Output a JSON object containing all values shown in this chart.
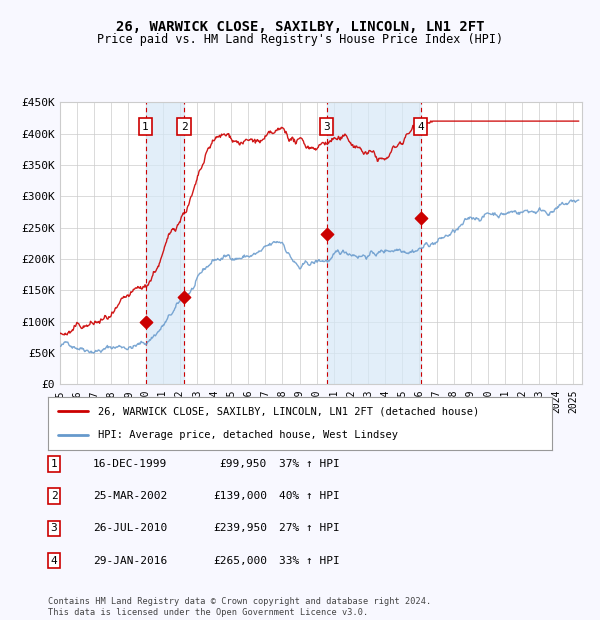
{
  "title": "26, WARWICK CLOSE, SAXILBY, LINCOLN, LN1 2FT",
  "subtitle": "Price paid vs. HM Land Registry's House Price Index (HPI)",
  "legend_line1": "26, WARWICK CLOSE, SAXILBY, LINCOLN, LN1 2FT (detached house)",
  "legend_line2": "HPI: Average price, detached house, West Lindsey",
  "footer1": "Contains HM Land Registry data © Crown copyright and database right 2024.",
  "footer2": "This data is licensed under the Open Government Licence v3.0.",
  "transactions": [
    {
      "num": 1,
      "date": "16-DEC-1999",
      "date_val": 2000.0,
      "price": 99950,
      "pct": "37% ↑ HPI"
    },
    {
      "num": 2,
      "date": "25-MAR-2002",
      "date_val": 2002.25,
      "price": 139000,
      "pct": "40% ↑ HPI"
    },
    {
      "num": 3,
      "date": "26-JUL-2010",
      "date_val": 2010.58,
      "price": 239950,
      "pct": "27% ↑ HPI"
    },
    {
      "num": 4,
      "date": "29-JAN-2016",
      "date_val": 2016.08,
      "price": 265000,
      "pct": "33% ↑ HPI"
    }
  ],
  "xmin": 1995.0,
  "xmax": 2025.5,
  "ymin": 0,
  "ymax": 450000,
  "yticks": [
    0,
    50000,
    100000,
    150000,
    200000,
    250000,
    300000,
    350000,
    400000,
    450000
  ],
  "ytick_labels": [
    "£0",
    "£50K",
    "£100K",
    "£150K",
    "£200K",
    "£250K",
    "£300K",
    "£350K",
    "£400K",
    "£450K"
  ],
  "background_color": "#f8f8ff",
  "plot_bg_color": "#ffffff",
  "grid_color": "#cccccc",
  "red_line_color": "#cc0000",
  "blue_line_color": "#6699cc",
  "shade_color": "#d6e8f7",
  "dashed_color": "#cc0000",
  "marker_color": "#cc0000",
  "box_color": "#cc0000",
  "table_rows": [
    {
      "num": "1",
      "date": "16-DEC-1999",
      "price": "£99,950",
      "pct": "37% ↑ HPI"
    },
    {
      "num": "2",
      "date": "25-MAR-2002",
      "price": "£139,000",
      "pct": "40% ↑ HPI"
    },
    {
      "num": "3",
      "date": "26-JUL-2010",
      "price": "£239,950",
      "pct": "27% ↑ HPI"
    },
    {
      "num": "4",
      "date": "29-JAN-2016",
      "price": "£265,000",
      "pct": "33% ↑ HPI"
    }
  ]
}
